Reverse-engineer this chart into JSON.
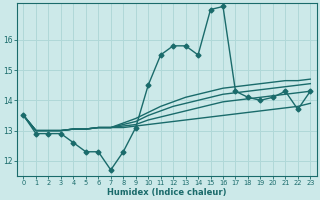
{
  "xlabel": "Humidex (Indice chaleur)",
  "xlim": [
    -0.5,
    23.5
  ],
  "ylim": [
    11.5,
    17.2
  ],
  "yticks": [
    12,
    13,
    14,
    15,
    16
  ],
  "xticks": [
    0,
    1,
    2,
    3,
    4,
    5,
    6,
    7,
    8,
    9,
    10,
    11,
    12,
    13,
    14,
    15,
    16,
    17,
    18,
    19,
    20,
    21,
    22,
    23
  ],
  "background_color": "#cce9e9",
  "grid_color": "#b0d8d8",
  "line_color": "#1a6b6b",
  "line_width": 1.0,
  "marker": "D",
  "marker_size": 2.5,
  "main_series": [
    13.5,
    12.9,
    12.9,
    12.9,
    12.6,
    12.3,
    12.3,
    11.7,
    12.3,
    13.1,
    14.5,
    15.5,
    15.8,
    15.8,
    15.5,
    17.0,
    17.1,
    14.3,
    14.1,
    14.0,
    14.1,
    14.3,
    13.7,
    14.3
  ],
  "band_series": [
    [
      13.5,
      13.0,
      13.0,
      13.0,
      13.05,
      13.05,
      13.1,
      13.1,
      13.1,
      13.15,
      13.2,
      13.25,
      13.3,
      13.35,
      13.4,
      13.45,
      13.5,
      13.55,
      13.6,
      13.65,
      13.7,
      13.75,
      13.8,
      13.9
    ],
    [
      13.5,
      13.0,
      13.0,
      13.0,
      13.05,
      13.05,
      13.1,
      13.1,
      13.15,
      13.2,
      13.35,
      13.45,
      13.55,
      13.65,
      13.75,
      13.85,
      13.95,
      14.0,
      14.05,
      14.1,
      14.15,
      14.2,
      14.25,
      14.3
    ],
    [
      13.5,
      13.0,
      13.0,
      13.0,
      13.05,
      13.05,
      13.1,
      13.1,
      13.2,
      13.3,
      13.5,
      13.65,
      13.8,
      13.9,
      14.0,
      14.1,
      14.2,
      14.25,
      14.3,
      14.35,
      14.4,
      14.45,
      14.5,
      14.55
    ],
    [
      13.5,
      13.0,
      13.0,
      13.0,
      13.05,
      13.05,
      13.1,
      13.1,
      13.25,
      13.4,
      13.6,
      13.8,
      13.95,
      14.1,
      14.2,
      14.3,
      14.4,
      14.45,
      14.5,
      14.55,
      14.6,
      14.65,
      14.65,
      14.7
    ]
  ]
}
